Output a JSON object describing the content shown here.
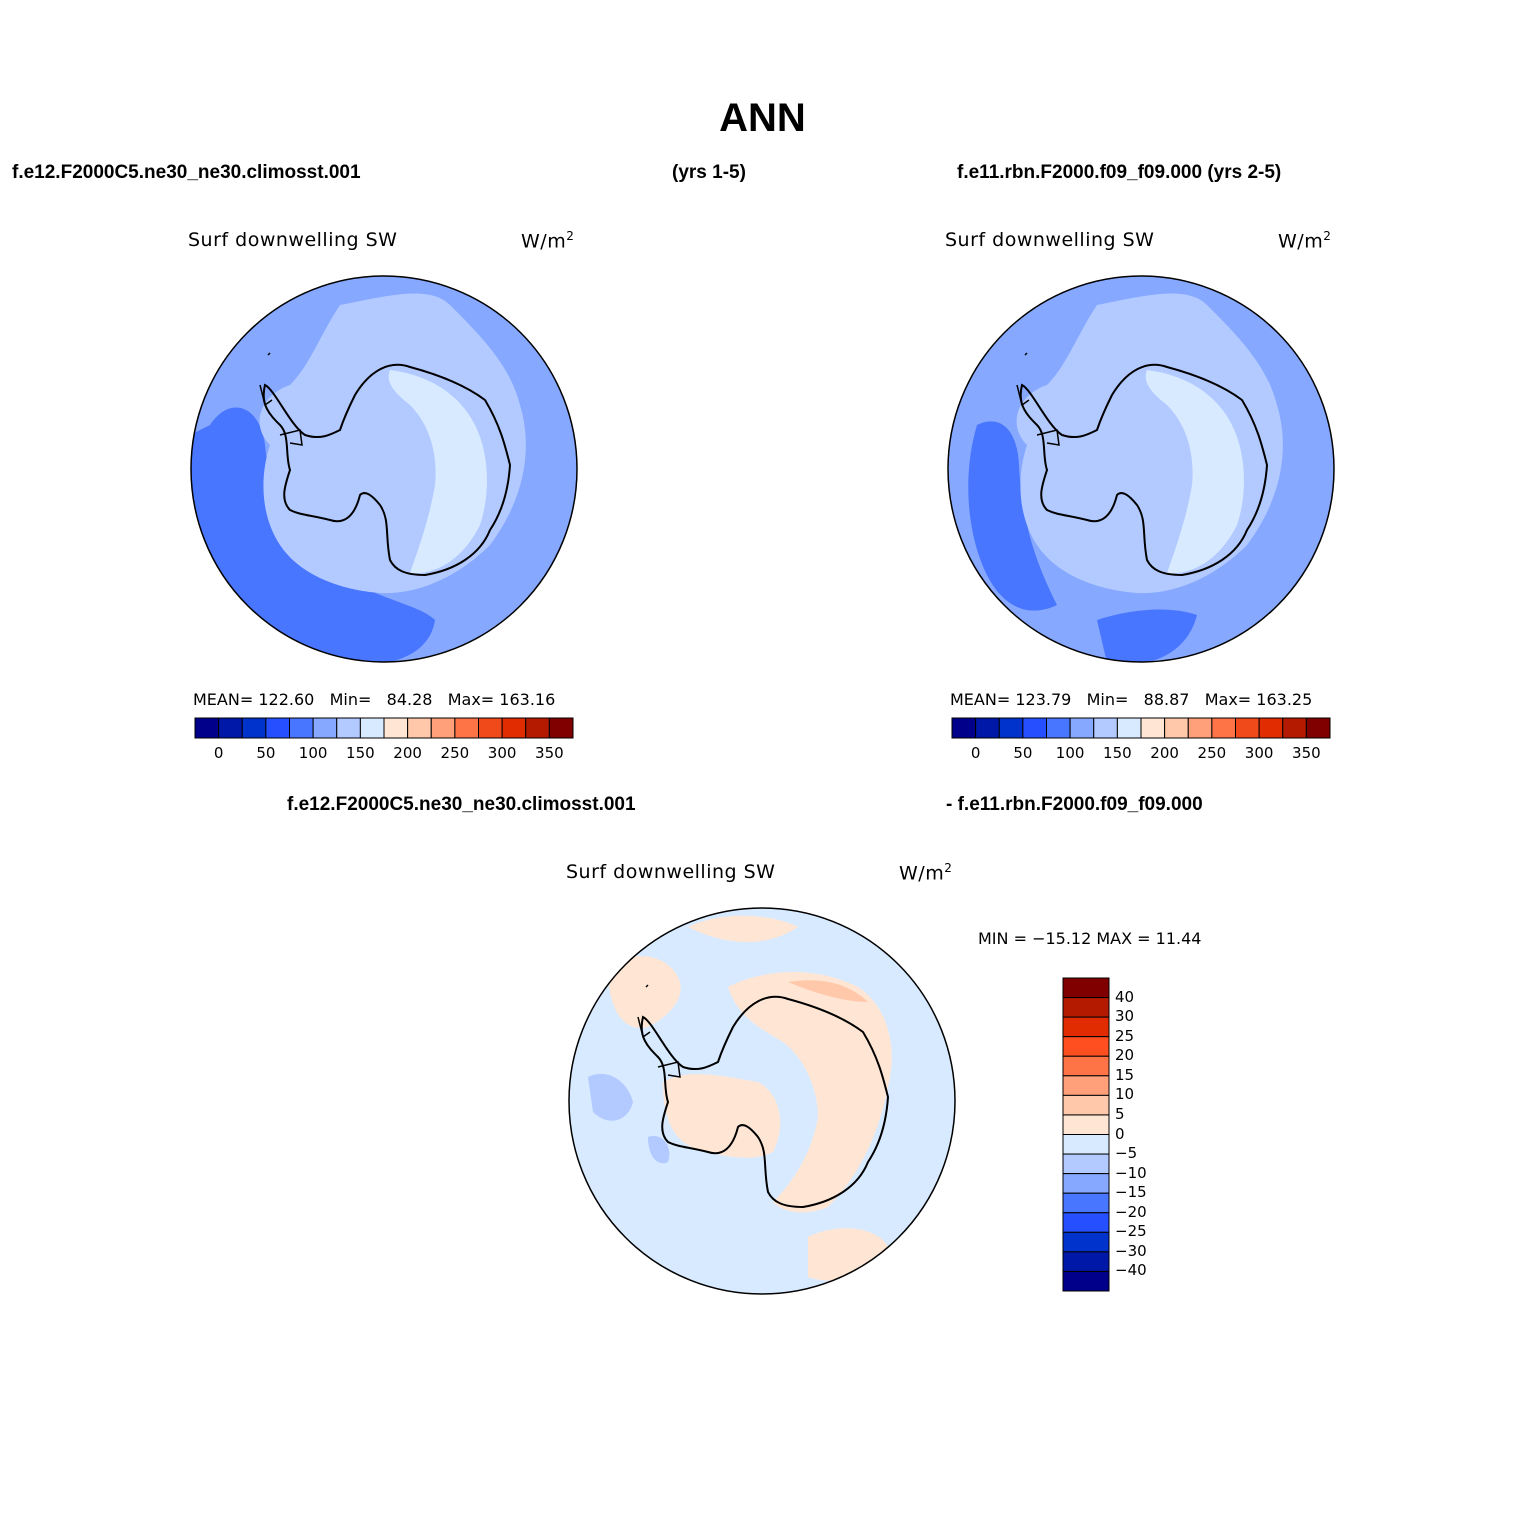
{
  "title": "ANN",
  "headers": {
    "left": "f.e12.F2000C5.ne30_ne30.climosst.001",
    "center": "(yrs 1-5)",
    "right": "f.e11.rbn.F2000.f09_f09.000 (yrs 2-5)",
    "diff_left": "f.e12.F2000C5.ne30_ne30.climosst.001",
    "diff_right": "- f.e11.rbn.F2000.f09_f09.000"
  },
  "panels": [
    {
      "variable": "Surf downwelling SW",
      "units_base": "W/m",
      "units_exp": "2",
      "stats": {
        "mean_label": "MEAN=",
        "mean": "122.60",
        "min_label": "Min=",
        "min": "84.28",
        "max_label": "Max=",
        "max": "163.16"
      }
    },
    {
      "variable": "Surf downwelling SW",
      "units_base": "W/m",
      "units_exp": "2",
      "stats": {
        "mean_label": "MEAN=",
        "mean": "123.79",
        "min_label": "Min=",
        "min": "88.87",
        "max_label": "Max=",
        "max": "163.25"
      }
    },
    {
      "variable": "Surf downwelling SW",
      "units_base": "W/m",
      "units_exp": "2",
      "stats_text": "MIN = −15.12 MAX =  11.44"
    }
  ],
  "colorbar_abs": {
    "colors": [
      "#00008a",
      "#0018a8",
      "#0032cc",
      "#2650ff",
      "#4876ff",
      "#86a8ff",
      "#b2caff",
      "#d8eaff",
      "#ffe6d4",
      "#ffc8aa",
      "#ffa07a",
      "#ff7446",
      "#f04a1a",
      "#e02c00",
      "#b41a00",
      "#800000"
    ],
    "labels": [
      "0",
      "50",
      "100",
      "150",
      "200",
      "250",
      "300",
      "350"
    ]
  },
  "colorbar_diff": {
    "colors": [
      "#800000",
      "#b41a00",
      "#e02c00",
      "#ff4e20",
      "#ff7446",
      "#ffa07a",
      "#ffc8aa",
      "#ffe6d4",
      "#d8eaff",
      "#b2caff",
      "#86a8ff",
      "#4876ff",
      "#2650ff",
      "#0032cc",
      "#0018a8",
      "#00008a"
    ],
    "labels": [
      "40",
      "30",
      "25",
      "20",
      "15",
      "10",
      "5",
      "0",
      "−5",
      "−10",
      "−15",
      "−20",
      "−25",
      "−30",
      "−40"
    ]
  },
  "map_colors": {
    "ocean_mid": "#86a8ff",
    "ocean_low": "#4876ff",
    "band_light": "#b2caff",
    "plateau": "#d8eaff",
    "diff_neg": "#d8eaff",
    "diff_neg_strong": "#b2caff",
    "diff_pos": "#ffe6d4",
    "diff_pos_strong": "#ffc8aa"
  }
}
